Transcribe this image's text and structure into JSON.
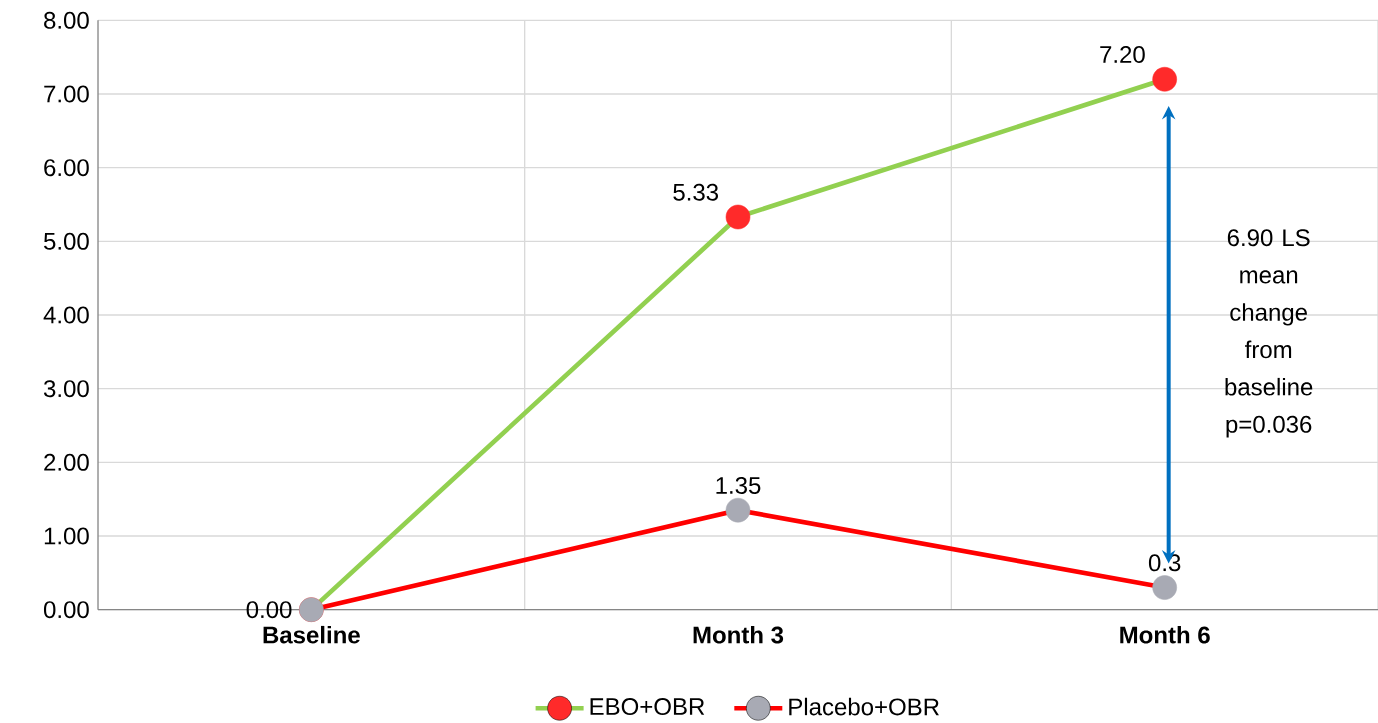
{
  "chart_data": {
    "type": "line",
    "categories": [
      "Baseline",
      "Month 3",
      "Month 6"
    ],
    "series": [
      {
        "name": "EBO+OBR",
        "color": "#92d050",
        "colors": [
          "#ff2a2a",
          "#ff2a2a",
          "#ff2a2a"
        ],
        "values": [
          0,
          5.33,
          7.2
        ],
        "value_labels": [
          "0.00",
          "5.33",
          "7.20"
        ]
      },
      {
        "name": "Placebo+OBR",
        "color": "#ff0000",
        "colors": [
          "#a8aab4",
          "#a8aab4",
          "#a8aab4"
        ],
        "values": [
          0,
          1.35,
          0.3
        ],
        "value_labels": [
          null,
          "1.35",
          "0.3"
        ]
      }
    ],
    "ylim": [
      0,
      8
    ],
    "yticks": [
      {
        "value": 0,
        "label": "0.00"
      },
      {
        "value": 1,
        "label": "1.00"
      },
      {
        "value": 2,
        "label": "2.00"
      },
      {
        "value": 3,
        "label": "3.00"
      },
      {
        "value": 4,
        "label": "4.00"
      },
      {
        "value": 5,
        "label": "5.00"
      },
      {
        "value": 6,
        "label": "6.00"
      },
      {
        "value": 7,
        "label": "7.00"
      },
      {
        "value": 8,
        "label": "8.00"
      }
    ],
    "grid": true,
    "legend": "bottom",
    "marker": "circle",
    "annotations": [
      "6.90 LS mean change from baseline p=0.036"
    ]
  }
}
